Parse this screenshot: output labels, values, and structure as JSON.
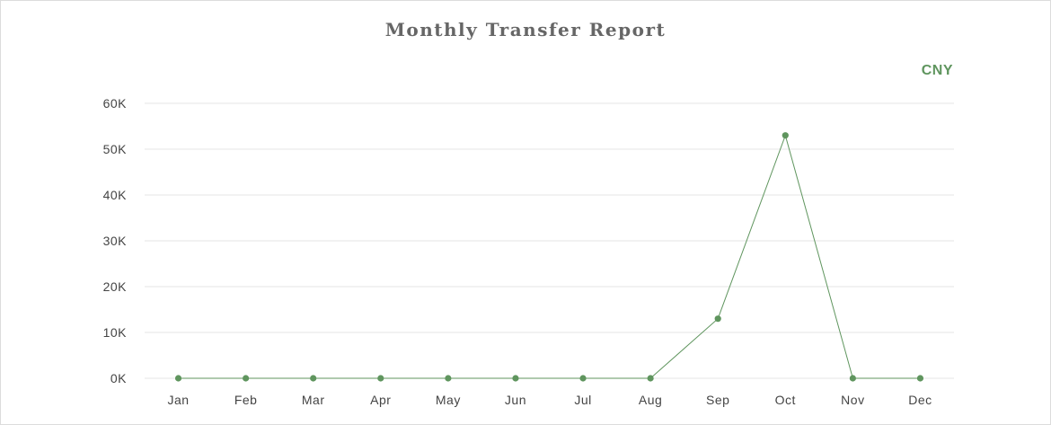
{
  "chart_data": {
    "type": "line",
    "title": "Monthly Transfer Report",
    "xlabel": "",
    "ylabel": "",
    "categories": [
      "Jan",
      "Feb",
      "Mar",
      "Apr",
      "May",
      "Jun",
      "Jul",
      "Aug",
      "Sep",
      "Oct",
      "Nov",
      "Dec"
    ],
    "series": [
      {
        "name": "CNY",
        "values": [
          0,
          0,
          0,
          0,
          0,
          0,
          0,
          0,
          13000,
          53000,
          0,
          0
        ]
      }
    ],
    "ylim": [
      0,
      60000
    ],
    "yticks": [
      0,
      10000,
      20000,
      30000,
      40000,
      50000,
      60000
    ],
    "ytick_labels": [
      "0K",
      "10K",
      "20K",
      "30K",
      "40K",
      "50K",
      "60K"
    ],
    "grid": true,
    "legend_position": "top-right",
    "colors": {
      "series": "#5f955e",
      "grid": "#e6e6e6",
      "title": "#666666"
    }
  }
}
